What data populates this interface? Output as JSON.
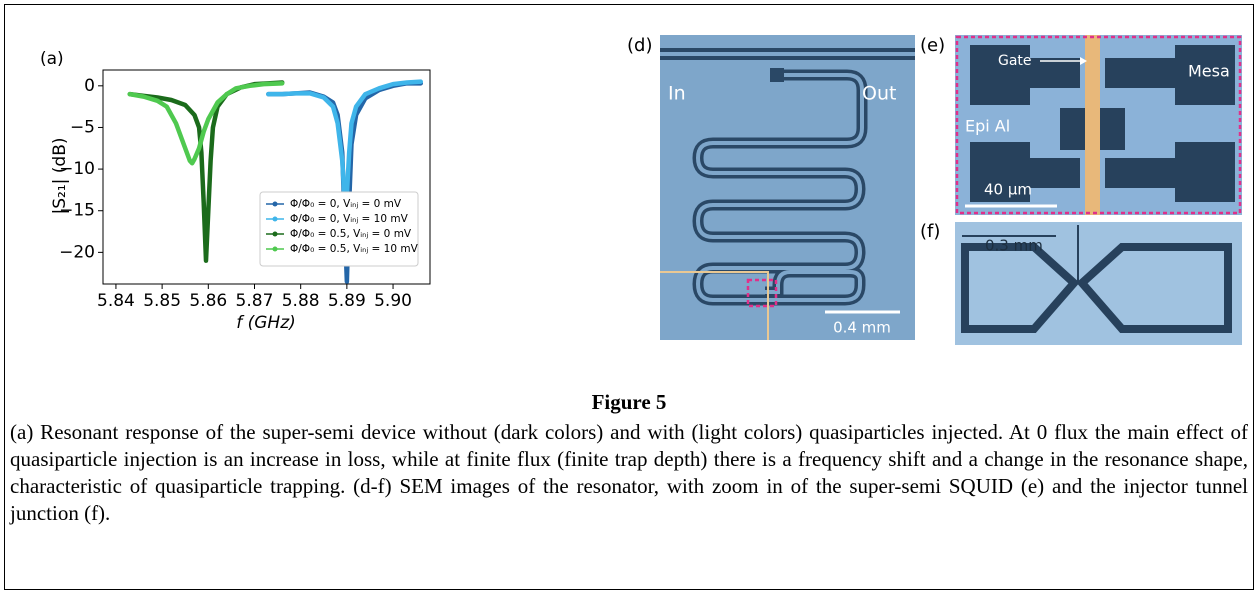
{
  "chart_data": {
    "type": "line",
    "panel_label": "(a)",
    "x_label": "f (GHz)",
    "y_label": "|S₂₁| (dB)",
    "xlim": [
      5.8372,
      5.908
    ],
    "ylim": [
      -23.8,
      1.9
    ],
    "xticks": [
      5.84,
      5.85,
      5.86,
      5.87,
      5.88,
      5.89,
      {
        "value": 5.9,
        "label": "5.90"
      }
    ],
    "yticks": [
      0,
      {
        "value": -5,
        "label": "−5"
      },
      {
        "value": -10,
        "label": "−10"
      },
      {
        "value": -15,
        "label": "−15"
      },
      {
        "value": -20,
        "label": "−20"
      }
    ],
    "legend": "lower right",
    "series": [
      {
        "name": "Φ/Φ₀ = 0, Vᵢₙⱼ = 0 mV",
        "color": "#2466a8",
        "x": [
          5.873,
          5.876,
          5.879,
          5.882,
          5.885,
          5.887,
          5.888,
          5.889,
          5.8895,
          5.89,
          5.8905,
          5.891,
          5.892,
          5.894,
          5.897,
          5.9,
          5.903,
          5.906
        ],
        "values": [
          -1.0,
          -1.0,
          -0.9,
          -0.8,
          -1.3,
          -2.0,
          -3.5,
          -8,
          -16,
          -23.5,
          -14,
          -7,
          -3.5,
          -1.5,
          -0.5,
          0,
          0.3,
          0.3
        ]
      },
      {
        "name": "Φ/Φ₀ = 0, Vᵢₙⱼ = 10 mV",
        "color": "#3fb5ea",
        "x": [
          5.873,
          5.876,
          5.879,
          5.882,
          5.885,
          5.887,
          5.888,
          5.889,
          5.8895,
          5.89,
          5.8905,
          5.891,
          5.892,
          5.894,
          5.897,
          5.9,
          5.903,
          5.906
        ],
        "values": [
          -1.0,
          -1.0,
          -0.9,
          -0.9,
          -1.4,
          -2.5,
          -4.5,
          -9,
          -13.5,
          -13,
          -8,
          -4.5,
          -2.5,
          -1,
          -0.3,
          0.2,
          0.4,
          0.5
        ]
      },
      {
        "name": "Φ/Φ₀ = 0.5, Vᵢₙⱼ = 0 mV",
        "color": "#1b6b1b",
        "x": [
          5.843,
          5.846,
          5.849,
          5.852,
          5.855,
          5.857,
          5.858,
          5.8585,
          5.859,
          5.8595,
          5.86,
          5.8605,
          5.861,
          5.862,
          5.864,
          5.867,
          5.87,
          5.873,
          5.876
        ],
        "values": [
          -1,
          -1.2,
          -1.4,
          -1.7,
          -2.3,
          -3.5,
          -5,
          -8,
          -14,
          -21,
          -15,
          -9,
          -5,
          -2.5,
          -1,
          -0.2,
          0.2,
          0.3,
          0.4
        ]
      },
      {
        "name": "Φ/Φ₀ = 0.5, Vᵢₙⱼ = 10 mV",
        "color": "#4fc94f",
        "x": [
          5.843,
          5.846,
          5.849,
          5.851,
          5.853,
          5.855,
          5.856,
          5.8565,
          5.857,
          5.858,
          5.859,
          5.86,
          5.862,
          5.864,
          5.866,
          5.869,
          5.872,
          5.876
        ],
        "values": [
          -1,
          -1.3,
          -1.8,
          -2.5,
          -4.5,
          -7.5,
          -9,
          -9.3,
          -8.8,
          -7.5,
          -5.5,
          -4,
          -2,
          -1,
          -0.3,
          0,
          0.2,
          0.3
        ]
      }
    ]
  },
  "panels": {
    "d": {
      "label": "(d)",
      "in": "In",
      "out": "Out",
      "scale": "0.4 mm"
    },
    "e": {
      "label": "(e)",
      "gate": "Gate",
      "mesa": "Mesa",
      "epi": "Epi Al",
      "scale": "40 μm"
    },
    "f": {
      "label": "(f)",
      "scale": "0.3 mm"
    }
  },
  "figure_title": "Figure 5",
  "caption": "(a) Resonant response of the super-semi device without (dark colors) and with (light colors) quasiparticles injected. At 0 flux the main effect of quasiparticle injection is an increase in loss, while at finite flux (finite trap depth) there is a frequency shift and a change in the resonance shape, characteristic of quasiparticle trapping. (d-f) SEM images of the resonator, with zoom in of the super-semi SQUID (e) and the injector tunnel junction (f)."
}
